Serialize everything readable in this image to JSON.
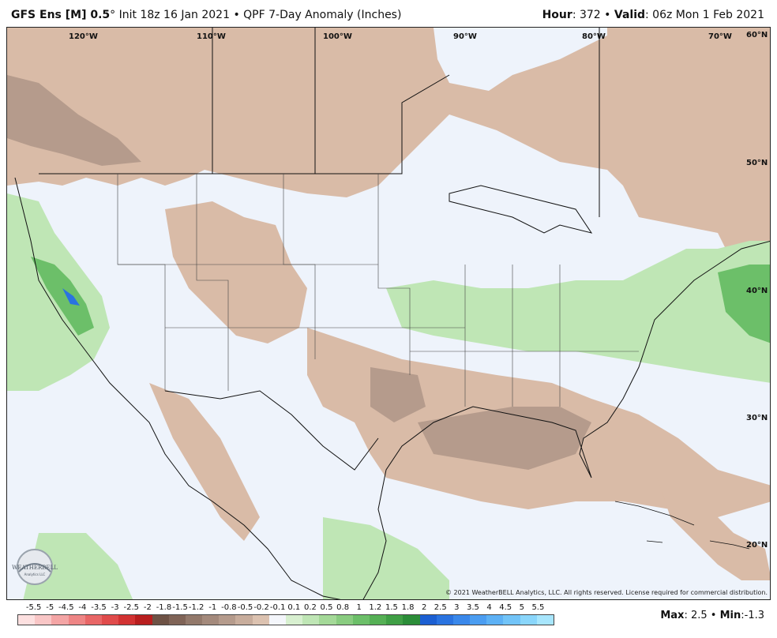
{
  "header": {
    "model": "GFS Ens [M] 0.5",
    "degree": "°",
    "init": "Init 18z 16 Jan 2021",
    "bullet": "•",
    "product": "QPF 7-Day Anomaly (Inches)",
    "hour_label": "Hour",
    "hour_value": ": 372",
    "valid_label": "Valid",
    "valid_value": ": 06z Mon 1 Feb 2021"
  },
  "map": {
    "lon_labels": [
      "120°W",
      "110°W",
      "100°W",
      "90°W",
      "80°W",
      "70°W"
    ],
    "lat_labels": [
      "60°N",
      "50°N",
      "40°N",
      "30°N",
      "20°N"
    ],
    "copyright": "© 2021 WeatherBELL Analytics, LLC. All rights reserved. License required for commercial distribution.",
    "logo_text": "WEATHERBELL",
    "logo_sub": "Analytics LLC"
  },
  "legend": {
    "labels": [
      "-5.5",
      "-5",
      "-4.5",
      "-4",
      "-3.5",
      "-3",
      "-2.5",
      "-2",
      "-1.8",
      "-1.5",
      "-1.2",
      "-1",
      "-0.8",
      "-0.5",
      "-0.2",
      "-0.1",
      "0.1",
      "0.2",
      "0.5",
      "0.8",
      "1",
      "1.2",
      "1.5",
      "1.8",
      "2",
      "2.5",
      "3",
      "3.5",
      "4",
      "4.5",
      "5",
      "5.5"
    ],
    "colors": [
      "#fde0e0",
      "#f9c6c6",
      "#f4a5a5",
      "#ee8585",
      "#e86666",
      "#e04b4b",
      "#d23232",
      "#b81e1e",
      "#6e5245",
      "#806457",
      "#93796b",
      "#a48a7c",
      "#b59b8c",
      "#c8ad9c",
      "#dcc2b0",
      "#f4f6fb",
      "#d8f0d0",
      "#bfe6b5",
      "#a4d998",
      "#89cc80",
      "#6cbf69",
      "#55b055",
      "#3f9f45",
      "#2b8d38",
      "#1c5fd2",
      "#2a73e0",
      "#3a88ea",
      "#4b9df1",
      "#5db1f5",
      "#72c4f8",
      "#8ad6fb",
      "#a8e6fd"
    ]
  },
  "footer": {
    "max_label": "Max",
    "max_value": ": 2.5",
    "bullet": "•",
    "min_label": "Min",
    "min_value": ":-1.3"
  }
}
